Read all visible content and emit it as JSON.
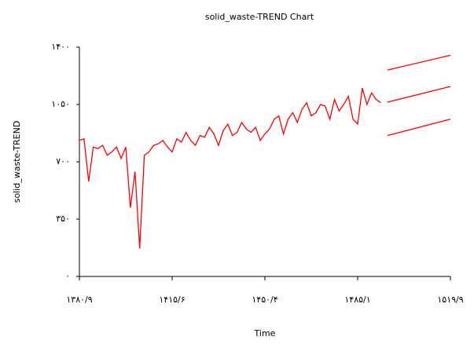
{
  "chart_data": {
    "type": "line",
    "title": "solid_waste-TREND Chart",
    "x_label": "Time",
    "y_label": "solid_waste-TREND",
    "xlim": [
      0,
      400
    ],
    "xticks": [
      {
        "value": 0,
        "label": "۱۳۸۰/۹"
      },
      {
        "value": 100,
        "label": "۱۴۱۵/۶"
      },
      {
        "value": 200,
        "label": "۱۴۵۰/۴"
      },
      {
        "value": 300,
        "label": "۱۴۸۵/۱"
      },
      {
        "value": 400,
        "label": "۱۵۱۹/۹"
      }
    ],
    "ylim": [
      0,
      1400
    ],
    "yticks": [
      {
        "value": 0,
        "label": "۰"
      },
      {
        "value": 350,
        "label": "۳۵۰"
      },
      {
        "value": 700,
        "label": "۷۰۰"
      },
      {
        "value": 1050,
        "label": "۱۰۵۰"
      },
      {
        "value": 1400,
        "label": "۱۴۰۰"
      }
    ],
    "series": [
      {
        "color": "#ff0000",
        "x": [
          0,
          5,
          10,
          15,
          20,
          25,
          30,
          35,
          40,
          45,
          50,
          55,
          60,
          65,
          70,
          75,
          80,
          85,
          90,
          95,
          100,
          105,
          110,
          115,
          120,
          125,
          130,
          135,
          140,
          145,
          150,
          155,
          160,
          165,
          170,
          175,
          180,
          185,
          190,
          195,
          200,
          205,
          210,
          215,
          220,
          225,
          230,
          235,
          240,
          245,
          250,
          255,
          260,
          265,
          270,
          275,
          280,
          285,
          290,
          295,
          300,
          305,
          310,
          315,
          320,
          325
        ],
        "values": [
          830,
          840,
          580,
          790,
          780,
          800,
          740,
          760,
          790,
          720,
          790,
          420,
          640,
          170,
          740,
          760,
          800,
          810,
          830,
          790,
          760,
          840,
          820,
          880,
          830,
          800,
          860,
          850,
          910,
          870,
          800,
          890,
          930,
          860,
          880,
          940,
          900,
          880,
          910,
          830,
          870,
          900,
          960,
          980,
          870,
          960,
          1000,
          940,
          1020,
          1060,
          980,
          1000,
          1050,
          1040,
          960,
          1080,
          1010,
          1050,
          1100,
          960,
          930,
          1150,
          1050,
          1120,
          1080,
          1060
        ]
      },
      {
        "color": "#ff0000",
        "x": [
          332,
          400
        ],
        "values": [
          1260,
          1350
        ]
      },
      {
        "color": "#ff0000",
        "x": [
          332,
          400
        ],
        "values": [
          1064,
          1160
        ]
      },
      {
        "color": "#ff0000",
        "x": [
          332,
          400
        ],
        "values": [
          860,
          960
        ]
      }
    ]
  }
}
